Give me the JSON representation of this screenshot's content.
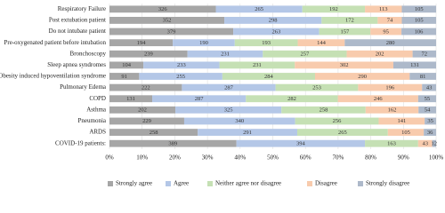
{
  "chart_data": {
    "type": "bar",
    "orientation": "horizontal",
    "stacked": true,
    "normalize": true,
    "categories": [
      "Respiratory Failure",
      "Post extubation patient",
      "Do not intubate patient",
      "Pre-oxygenated patient before intubation",
      "Bronchoscopy",
      "Sleep apnea syndromes",
      "Obesity induced hypoventilation syndrome",
      "Pulmonary Edema",
      "COPD",
      "Asthma",
      "Pneumonia",
      "ARDS",
      "COVID-19 patients:"
    ],
    "series": [
      {
        "name": "Strongly agree",
        "color": "#a6a6a6",
        "values": [
          326,
          352,
          379,
          194,
          239,
          104,
          91,
          222,
          131,
          202,
          229,
          258,
          389
        ]
      },
      {
        "name": "Agree",
        "color": "#b4c7e7",
        "values": [
          265,
          298,
          263,
          190,
          231,
          233,
          255,
          287,
          287,
          325,
          340,
          291,
          394
        ]
      },
      {
        "name": "Neither agree nor disagree",
        "color": "#c5e0b4",
        "values": [
          192,
          172,
          157,
          193,
          257,
          231,
          284,
          253,
          282,
          258,
          256,
          265,
          163
        ]
      },
      {
        "name": "Disagree",
        "color": "#f8cbad",
        "values": [
          113,
          74,
          95,
          144,
          202,
          302,
          290,
          196,
          246,
          162,
          141,
          105,
          43
        ]
      },
      {
        "name": "Strongly disagree",
        "color": "#adb9ca",
        "values": [
          105,
          105,
          106,
          280,
          72,
          131,
          81,
          43,
          55,
          54,
          35,
          36,
          12
        ]
      }
    ],
    "xlim": [
      0,
      100
    ],
    "xticks": [
      {
        "value": 0,
        "label": "0%"
      },
      {
        "value": 10,
        "label": "10%"
      },
      {
        "value": 20,
        "label": "20%"
      },
      {
        "value": 30,
        "label": "30%"
      },
      {
        "value": 40,
        "label": "40%"
      },
      {
        "value": 50,
        "label": "50%"
      },
      {
        "value": 60,
        "label": "60%"
      },
      {
        "value": 70,
        "label": "70%"
      },
      {
        "value": 80,
        "label": "80%"
      },
      {
        "value": 90,
        "label": "90%"
      },
      {
        "value": 100,
        "label": "100%"
      }
    ],
    "grid": true,
    "legend": "bottom"
  }
}
